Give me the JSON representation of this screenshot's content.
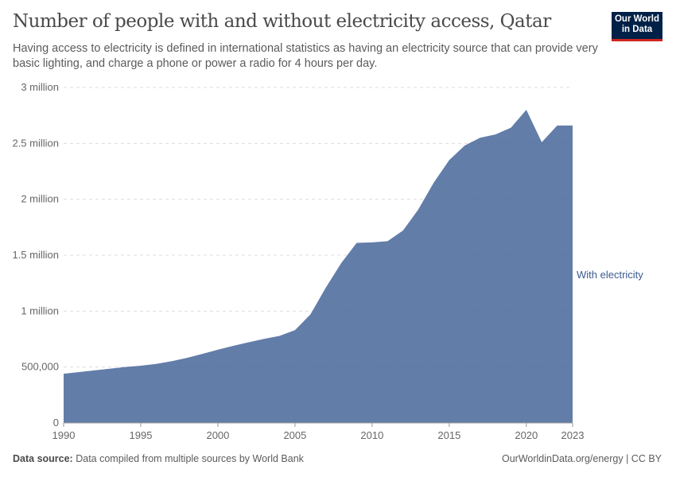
{
  "header": {
    "title": "Number of people with and without electricity access, Qatar",
    "subtitle": "Having access to electricity is defined in international statistics as having an electricity source that can provide very basic lighting, and charge a phone or power a radio for 4 hours per day.",
    "logo": "Our World in Data"
  },
  "footer": {
    "source_label": "Data source:",
    "source_text": "Data compiled from multiple sources by World Bank",
    "credit": "OurWorldinData.org/energy | CC BY"
  },
  "chart_data": {
    "type": "area",
    "title": "Number of people with and without electricity access, Qatar",
    "ylim": [
      0,
      3000000
    ],
    "xlim": [
      1990,
      2023
    ],
    "grid": "horizontal dashed",
    "yticks": [
      {
        "v": 0,
        "label": "0"
      },
      {
        "v": 500000,
        "label": "500,000"
      },
      {
        "v": 1000000,
        "label": "1 million"
      },
      {
        "v": 1500000,
        "label": "1.5 million"
      },
      {
        "v": 2000000,
        "label": "2 million"
      },
      {
        "v": 2500000,
        "label": "2.5 million"
      },
      {
        "v": 3000000,
        "label": "3 million"
      }
    ],
    "xticks": [
      1990,
      1995,
      2000,
      2005,
      2010,
      2015,
      2020,
      2023
    ],
    "x": [
      1990,
      1991,
      1992,
      1993,
      1994,
      1995,
      1996,
      1997,
      1998,
      1999,
      2000,
      2001,
      2002,
      2003,
      2004,
      2005,
      2006,
      2007,
      2008,
      2009,
      2010,
      2011,
      2012,
      2013,
      2014,
      2015,
      2016,
      2017,
      2018,
      2019,
      2020,
      2021,
      2022,
      2023
    ],
    "series": [
      {
        "name": "With electricity",
        "color": "#4c6a9c",
        "values": [
          440000,
          455000,
          470000,
          485000,
          500000,
          512000,
          528000,
          552000,
          582000,
          618000,
          655000,
          690000,
          722000,
          752000,
          778000,
          830000,
          970000,
          1210000,
          1430000,
          1610000,
          1615000,
          1625000,
          1720000,
          1910000,
          2150000,
          2350000,
          2480000,
          2550000,
          2580000,
          2640000,
          2800000,
          2510000,
          2660000,
          2660000
        ]
      }
    ]
  }
}
